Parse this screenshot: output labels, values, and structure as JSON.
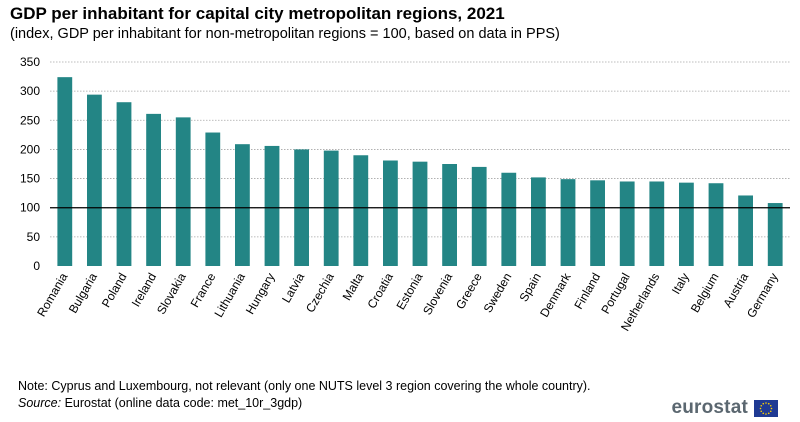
{
  "header": {
    "title": "GDP per inhabitant for capital city metropolitan regions, 2021",
    "subtitle": "(index, GDP per inhabitant for non-metropolitan regions = 100, based on data in PPS)"
  },
  "footer": {
    "note": "Note: Cyprus and Luxembourg, not relevant (only one NUTS level 3 region covering the whole country).",
    "source_label": "Source:",
    "source_text": " Eurostat (online data code: met_10r_3gdp)",
    "logo_text": "eurostat"
  },
  "colors": {
    "bar": "#238585",
    "reference_line": "#000000",
    "grid": "#a6a6a6"
  },
  "chart_data": {
    "type": "bar",
    "categories": [
      "Romania",
      "Bulgaria",
      "Poland",
      "Ireland",
      "Slovakia",
      "France",
      "Lithuania",
      "Hungary",
      "Latvia",
      "Czechia",
      "Malta",
      "Croatia",
      "Estonia",
      "Slovenia",
      "Greece",
      "Sweden",
      "Spain",
      "Denmark",
      "Finland",
      "Portugal",
      "Netherlands",
      "Italy",
      "Belgium",
      "Austria",
      "Germany"
    ],
    "values": [
      324,
      294,
      281,
      261,
      255,
      229,
      209,
      206,
      200,
      198,
      190,
      181,
      179,
      175,
      170,
      160,
      152,
      149,
      147,
      145,
      145,
      143,
      142,
      121,
      108
    ],
    "title": "GDP per inhabitant for capital city metropolitan regions, 2021",
    "xlabel": "",
    "ylabel": "",
    "ylim": [
      0,
      350
    ],
    "yticks": [
      0,
      50,
      100,
      150,
      200,
      250,
      300,
      350
    ],
    "reference_value": 100,
    "grid": true
  }
}
